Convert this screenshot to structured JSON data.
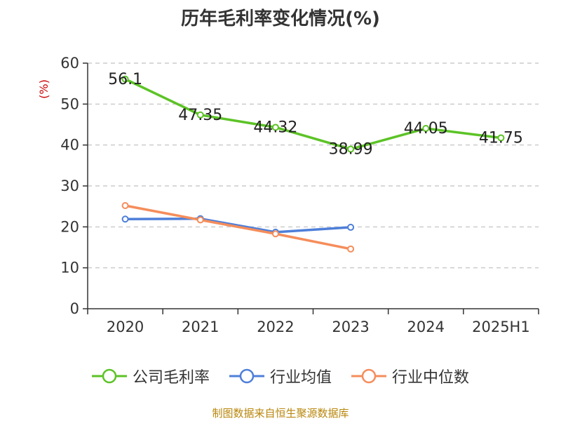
{
  "title": "历年毛利率变化情况(%)",
  "source": "制图数据来自恒生聚源数据库",
  "chart_data": {
    "type": "line",
    "title": "历年毛利率变化情况(%)",
    "ylabel": "(%)",
    "xlabel": "",
    "categories": [
      "2020",
      "2021",
      "2022",
      "2023",
      "2024",
      "2025H1"
    ],
    "ylim": [
      0,
      60
    ],
    "yticks": [
      "0",
      "10",
      "20",
      "30",
      "40",
      "50",
      "60"
    ],
    "grid": true,
    "legend_position": "bottom",
    "series": [
      {
        "name": "公司毛利率",
        "color": "#5cc326",
        "values": [
          56.1,
          47.35,
          44.32,
          38.99,
          44.05,
          41.75
        ],
        "labels": [
          "56.1",
          "47.35",
          "44.32",
          "38.99",
          "44.05",
          "41.75"
        ]
      },
      {
        "name": "行业均值",
        "color": "#4e7fd9",
        "values": [
          21.9,
          22.0,
          18.7,
          19.9,
          null,
          null
        ]
      },
      {
        "name": "行业中位数",
        "color": "#f58d5b",
        "values": [
          25.2,
          21.7,
          18.3,
          14.6,
          null,
          null
        ]
      }
    ]
  }
}
